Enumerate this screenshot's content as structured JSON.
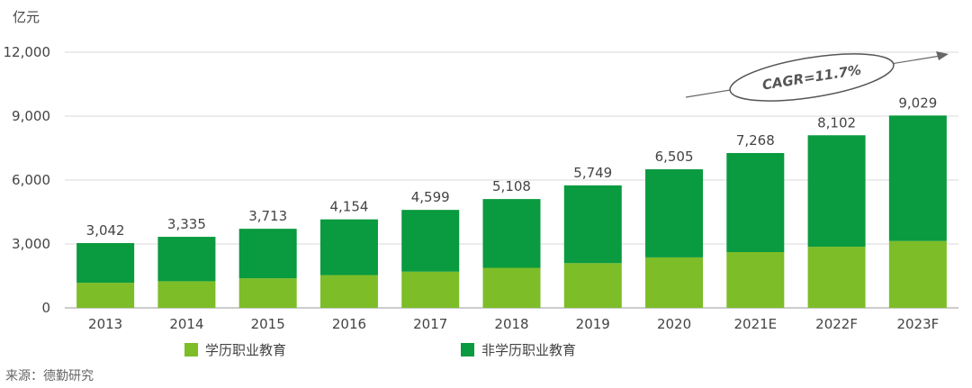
{
  "chart_data": {
    "type": "bar",
    "stacked": true,
    "unit": "亿元",
    "categories": [
      "2013",
      "2014",
      "2015",
      "2016",
      "2017",
      "2018",
      "2019",
      "2020",
      "2021E",
      "2022F",
      "2023F"
    ],
    "series": [
      {
        "name": "学历职业教育",
        "color": "#7cbd28",
        "values": [
          1180,
          1250,
          1390,
          1540,
          1700,
          1880,
          2100,
          2370,
          2620,
          2870,
          3140
        ]
      },
      {
        "name": "非学历职业教育",
        "color": "#0a9a3f",
        "values": [
          1862,
          2085,
          2323,
          2614,
          2899,
          3228,
          3649,
          4135,
          4648,
          5232,
          5889
        ]
      }
    ],
    "totals": [
      "3,042",
      "3,335",
      "3,713",
      "4,154",
      "4,599",
      "5,108",
      "5,749",
      "6,505",
      "7,268",
      "8,102",
      "9,029"
    ],
    "total_values": [
      3042,
      3335,
      3713,
      4154,
      4599,
      5108,
      5749,
      6505,
      7268,
      8102,
      9029
    ],
    "yticks": [
      {
        "value": 0,
        "label": "0"
      },
      {
        "value": 3000,
        "label": "3,000"
      },
      {
        "value": 6000,
        "label": "6,000"
      },
      {
        "value": 9000,
        "label": "9,000"
      },
      {
        "value": 12000,
        "label": "12,000"
      }
    ],
    "ylim": [
      0,
      12000
    ],
    "grid": true,
    "annotation": "CAGR=11.7%",
    "legend_position": "bottom"
  },
  "legend": {
    "item1": "学历职业教育",
    "item2": "非学历职业教育"
  },
  "source": "来源：德勤研究"
}
